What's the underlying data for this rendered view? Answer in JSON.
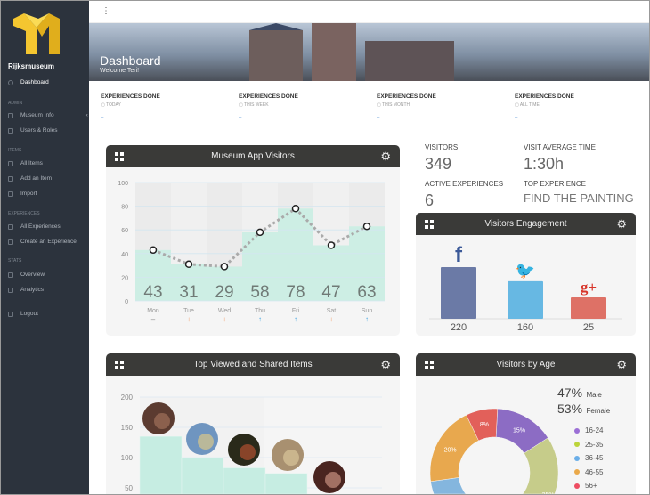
{
  "sidebar": {
    "brand": "Rijksmuseum",
    "dashboard": "Dashboard",
    "sections": [
      {
        "title": "ADMIN",
        "items": [
          "Museum Info",
          "Users & Roles"
        ]
      },
      {
        "title": "ITEMS",
        "items": [
          "All Items",
          "Add an Item",
          "Import"
        ]
      },
      {
        "title": "EXPERIENCES",
        "items": [
          "All Experiences",
          "Create an Experience"
        ]
      },
      {
        "title": "STATS",
        "items": [
          "Overview",
          "Analytics"
        ]
      }
    ],
    "logout": "Logout"
  },
  "topbar": {
    "menu_icon": "⋮"
  },
  "banner": {
    "title": "Dashboard",
    "subtitle": "Welcome Teri!"
  },
  "stats": [
    {
      "label": "EXPERIENCES DONE",
      "period": "TODAY",
      "value": "–"
    },
    {
      "label": "EXPERIENCES DONE",
      "period": "THIS WEEK",
      "value": "–"
    },
    {
      "label": "EXPERIENCES DONE",
      "period": "THIS MONTH",
      "value": "–"
    },
    {
      "label": "EXPERIENCES DONE",
      "period": "ALL TIME",
      "value": "–"
    }
  ],
  "kpis": {
    "visitors_label": "VISITORS",
    "visitors": "349",
    "avg_label": "VISIT AVERAGE TIME",
    "avg": "1:30h",
    "active_label": "ACTIVE EXPERIENCES",
    "active": "6",
    "top_label": "TOP EXPERIENCE",
    "top": "FIND THE PAINTING"
  },
  "chart_data": [
    {
      "type": "bar",
      "title": "Museum App Visitors",
      "categories": [
        "Mon",
        "Tue",
        "Wed",
        "Thu",
        "Fri",
        "Sat",
        "Sun"
      ],
      "values": [
        43,
        31,
        29,
        58,
        78,
        47,
        63
      ],
      "trend": [
        "flat",
        "down",
        "down",
        "up",
        "up",
        "down",
        "up"
      ],
      "ylim": [
        0,
        100
      ],
      "yticks": [
        0,
        20,
        40,
        60,
        80,
        100
      ],
      "grid": true,
      "accent": "#cdeee4"
    },
    {
      "type": "bar",
      "title": "Visitors Engagement",
      "categories": [
        "facebook",
        "twitter",
        "google-plus"
      ],
      "values": [
        220,
        160,
        25
      ],
      "colors": [
        "#6b7aa6",
        "#67b8e3",
        "#de7166"
      ]
    },
    {
      "type": "bar",
      "title": "Top Viewed and Shared Items",
      "values": [
        135,
        100,
        83,
        74
      ],
      "yticks": [
        50,
        100,
        150,
        200
      ],
      "grid": true
    },
    {
      "type": "pie",
      "title": "Visitors by Age",
      "male": "47%",
      "male_label": "Male",
      "female": "53%",
      "female_label": "Female",
      "slices": [
        {
          "name": "16-24",
          "value": 15,
          "label": "15%",
          "color": "#8c6cc4"
        },
        {
          "name": "25-35",
          "value": 35,
          "label": "35%",
          "color": "#c6cc8a"
        },
        {
          "name": "36-45",
          "value": 22,
          "label": "",
          "color": "#84b6de"
        },
        {
          "name": "46-55",
          "value": 20,
          "label": "20%",
          "color": "#e8a84e"
        },
        {
          "name": "56+",
          "value": 8,
          "label": "8%",
          "color": "#e2605a"
        }
      ],
      "legend_colors": [
        "#9b6fd6",
        "#bcd43a",
        "#6aaee8",
        "#eaa94a",
        "#ee4d62"
      ]
    }
  ],
  "panel_icons": {
    "grid": "grid-icon",
    "settings": "⚙"
  }
}
